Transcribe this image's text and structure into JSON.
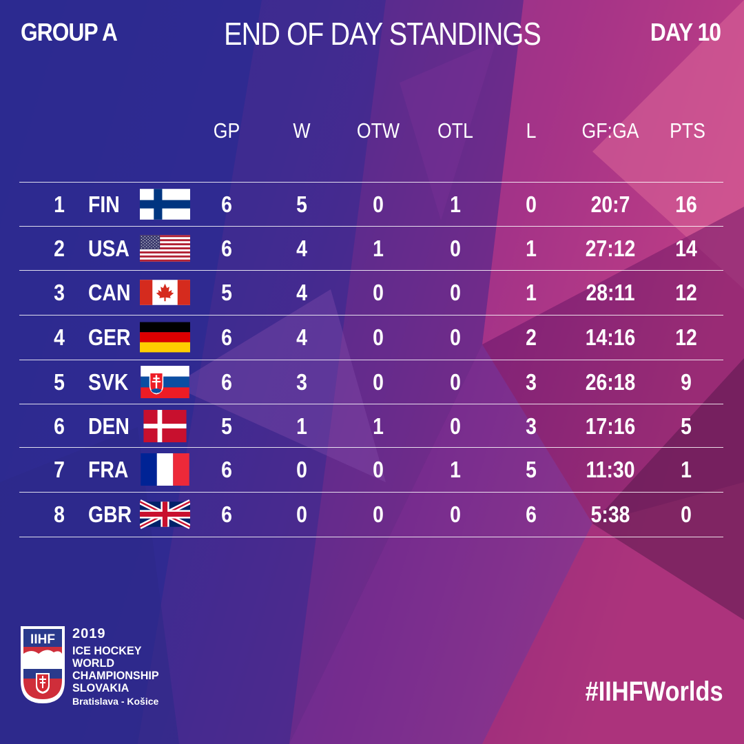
{
  "header": {
    "group": "GROUP A",
    "title": "END OF DAY STANDINGS",
    "day": "DAY 10"
  },
  "columns": [
    "GP",
    "W",
    "OTW",
    "OTL",
    "L",
    "GF:GA",
    "PTS"
  ],
  "rows": [
    {
      "rank": "1",
      "team": "FIN",
      "flag": "finland-flag-icon",
      "gp": "6",
      "w": "5",
      "otw": "0",
      "otl": "1",
      "l": "0",
      "gfga": "20:7",
      "pts": "16"
    },
    {
      "rank": "2",
      "team": "USA",
      "flag": "usa-flag-icon",
      "gp": "6",
      "w": "4",
      "otw": "1",
      "otl": "0",
      "l": "1",
      "gfga": "27:12",
      "pts": "14"
    },
    {
      "rank": "3",
      "team": "CAN",
      "flag": "canada-flag-icon",
      "gp": "5",
      "w": "4",
      "otw": "0",
      "otl": "0",
      "l": "1",
      "gfga": "28:11",
      "pts": "12"
    },
    {
      "rank": "4",
      "team": "GER",
      "flag": "germany-flag-icon",
      "gp": "6",
      "w": "4",
      "otw": "0",
      "otl": "0",
      "l": "2",
      "gfga": "14:16",
      "pts": "12"
    },
    {
      "rank": "5",
      "team": "SVK",
      "flag": "slovakia-flag-icon",
      "gp": "6",
      "w": "3",
      "otw": "0",
      "otl": "0",
      "l": "3",
      "gfga": "26:18",
      "pts": "9"
    },
    {
      "rank": "6",
      "team": "DEN",
      "flag": "denmark-flag-icon",
      "gp": "5",
      "w": "1",
      "otw": "1",
      "otl": "0",
      "l": "3",
      "gfga": "17:16",
      "pts": "5"
    },
    {
      "rank": "7",
      "team": "FRA",
      "flag": "france-flag-icon",
      "gp": "6",
      "w": "0",
      "otw": "0",
      "otl": "1",
      "l": "5",
      "gfga": "11:30",
      "pts": "1"
    },
    {
      "rank": "8",
      "team": "GBR",
      "flag": "uk-flag-icon",
      "gp": "6",
      "w": "0",
      "otw": "0",
      "otl": "0",
      "l": "6",
      "gfga": "5:38",
      "pts": "0"
    }
  ],
  "logo": {
    "brand": "IIHF",
    "year": "2019",
    "line1": "ICE HOCKEY",
    "line2": "WORLD",
    "line3": "CHAMPIONSHIP",
    "line4": "SLOVAKIA",
    "cities": "Bratislava - Košice"
  },
  "hashtag": "#IIHFWorlds",
  "colors": {
    "bg_blue": "#33278a",
    "bg_purple": "#6a2a8e",
    "bg_magenta": "#b0277a",
    "bg_pink": "#d8558f"
  }
}
